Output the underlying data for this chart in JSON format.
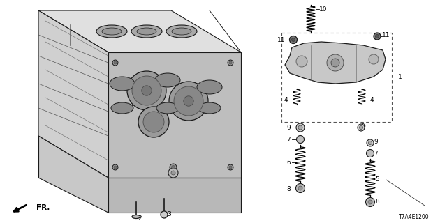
{
  "bg_color": "#ffffff",
  "part_number": "T7A4E1200",
  "line_color": "#1a1a1a",
  "gray_fill": "#c8c8c8",
  "light_gray": "#e8e8e8",
  "mid_gray": "#a0a0a0"
}
